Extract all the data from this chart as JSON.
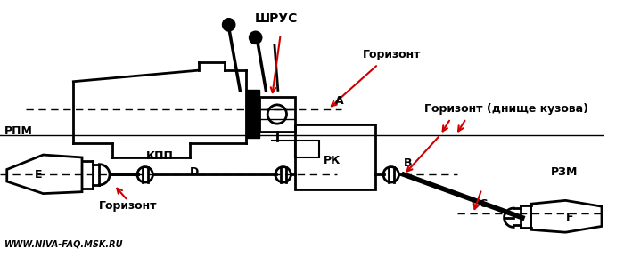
{
  "bg_color": "#ffffff",
  "lc": "#000000",
  "rc": "#cc0000",
  "fig_width": 7.0,
  "fig_height": 2.89,
  "dpi": 100,
  "labels": {
    "SHRUS": "ШРУС",
    "Gorizont_A": "Горизонт",
    "Gorizont_dnische": "Горизонт (днище кузова)",
    "Gorizont_E": "Горизонт",
    "RPM": "РПМ",
    "KPP": "КПП",
    "RK": "РК",
    "RZM": "РЗМ",
    "A": "A",
    "B": "B",
    "C": "C",
    "D": "D",
    "E": "E",
    "F": "F",
    "watermark": "WWW.NIVA-FAQ.MSK.RU"
  }
}
